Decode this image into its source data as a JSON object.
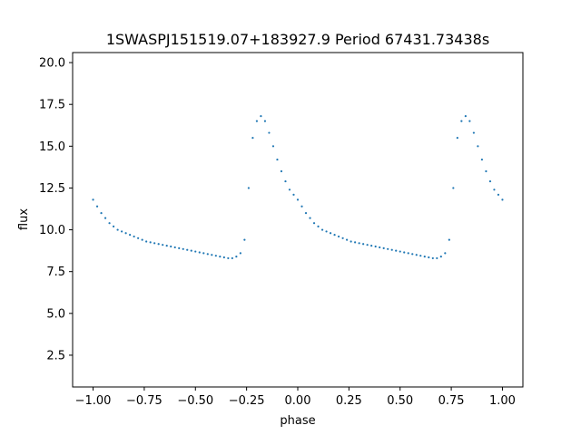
{
  "chart_data": {
    "type": "scatter",
    "title": "1SWASPJ151519.07+183927.9 Period 67431.73438s",
    "xlabel": "phase",
    "ylabel": "flux",
    "xlim": [
      -1.1,
      1.1
    ],
    "ylim": [
      0.6,
      20.6
    ],
    "xticks": [
      -1.0,
      -0.75,
      -0.5,
      -0.25,
      0.0,
      0.25,
      0.5,
      0.75,
      1.0
    ],
    "xtick_labels": [
      "−1.00",
      "−0.75",
      "−0.50",
      "−0.25",
      "0.00",
      "0.25",
      "0.50",
      "0.75",
      "1.00"
    ],
    "yticks": [
      2.5,
      5.0,
      7.5,
      10.0,
      12.5,
      15.0,
      17.5,
      20.0
    ],
    "ytick_labels": [
      "2.5",
      "5.0",
      "7.5",
      "10.0",
      "12.5",
      "15.0",
      "17.5",
      "20.0"
    ],
    "grid": false,
    "marker_color": "#1f77b4",
    "series": [
      {
        "x": [
          -1.0,
          -0.98,
          -0.96,
          -0.94,
          -0.92,
          -0.9,
          -0.88,
          -0.86,
          -0.84,
          -0.82,
          -0.8,
          -0.78,
          -0.76,
          -0.74,
          -0.72,
          -0.7,
          -0.68,
          -0.66,
          -0.64,
          -0.62,
          -0.6,
          -0.58,
          -0.56,
          -0.54,
          -0.52,
          -0.5,
          -0.48,
          -0.46,
          -0.44,
          -0.42,
          -0.4,
          -0.38,
          -0.36,
          -0.34,
          -0.32,
          -0.3,
          -0.28,
          -0.26,
          -0.24,
          -0.22,
          -0.2,
          -0.18,
          -0.16,
          -0.14,
          -0.12,
          -0.1,
          -0.08,
          -0.06,
          -0.04,
          -0.02,
          0.0,
          0.02,
          0.04,
          0.06,
          0.08,
          0.1,
          0.12,
          0.14,
          0.16,
          0.18,
          0.2,
          0.22,
          0.24,
          0.26,
          0.28,
          0.3,
          0.32,
          0.34,
          0.36,
          0.38,
          0.4,
          0.42,
          0.44,
          0.46,
          0.48,
          0.5,
          0.52,
          0.54,
          0.56,
          0.58,
          0.6,
          0.62,
          0.64,
          0.66,
          0.68,
          0.7,
          0.72,
          0.74,
          0.76,
          0.78,
          0.8,
          0.82,
          0.84,
          0.86,
          0.88,
          0.9,
          0.92,
          0.94,
          0.96,
          0.98,
          1.0
        ],
        "y": [
          11.8,
          11.4,
          11.0,
          10.7,
          10.4,
          10.2,
          10.0,
          9.9,
          9.8,
          9.7,
          9.6,
          9.5,
          9.4,
          9.3,
          9.25,
          9.2,
          9.15,
          9.1,
          9.05,
          9.0,
          8.95,
          8.9,
          8.85,
          8.8,
          8.75,
          8.7,
          8.65,
          8.6,
          8.55,
          8.5,
          8.45,
          8.4,
          8.35,
          8.3,
          8.3,
          8.4,
          8.6,
          9.4,
          12.5,
          15.5,
          16.5,
          16.8,
          16.5,
          15.8,
          15.0,
          14.2,
          13.5,
          12.9,
          12.4,
          12.1,
          11.8,
          11.4,
          11.0,
          10.7,
          10.4,
          10.2,
          10.0,
          9.9,
          9.8,
          9.7,
          9.6,
          9.5,
          9.4,
          9.3,
          9.25,
          9.2,
          9.15,
          9.1,
          9.05,
          9.0,
          8.95,
          8.9,
          8.85,
          8.8,
          8.75,
          8.7,
          8.65,
          8.6,
          8.55,
          8.5,
          8.45,
          8.4,
          8.35,
          8.3,
          8.3,
          8.4,
          8.6,
          9.4,
          12.5,
          15.5,
          16.5,
          16.8,
          16.5,
          15.8,
          15.0,
          14.2,
          13.5,
          12.9,
          12.4,
          12.1,
          11.8
        ]
      }
    ]
  }
}
